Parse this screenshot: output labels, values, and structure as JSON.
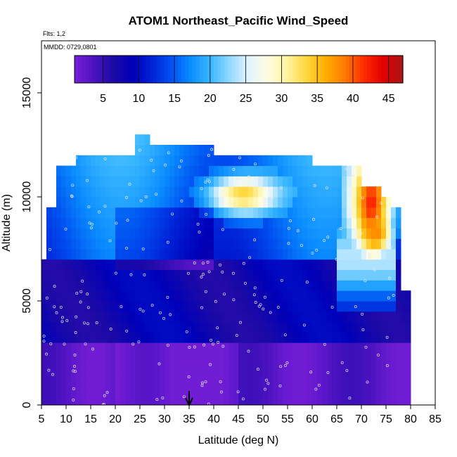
{
  "chart_data": {
    "type": "heatmap",
    "title": "ATOM1 Northeast_Pacific Wind_Speed",
    "info": [
      "Flts: 1,2",
      "MMDD: 0729,0801"
    ],
    "xlabel": "Latitude (deg N)",
    "ylabel": "Altitude (m)",
    "xlim": [
      5,
      85
    ],
    "ylim": [
      0,
      17500
    ],
    "xticks": [
      "5",
      "10",
      "15",
      "20",
      "25",
      "30",
      "35",
      "40",
      "45",
      "50",
      "55",
      "60",
      "65",
      "70",
      "75",
      "80",
      "85"
    ],
    "yticks": [
      "0",
      "5000",
      "10000",
      "15000"
    ],
    "colorbar": {
      "range": [
        1,
        47
      ],
      "ticks": [
        "5",
        "10",
        "15",
        "20",
        "25",
        "30",
        "35",
        "40",
        "45"
      ],
      "colors": [
        "#7a1fd9",
        "#4b12c0",
        "#1d0aa6",
        "#0000b8",
        "#0022d8",
        "#0050f0",
        "#0a8cff",
        "#38b6ff",
        "#8fd8ff",
        "#e2f4ff",
        "#fffde0",
        "#fff3a0",
        "#ffd840",
        "#ffae00",
        "#ff7a00",
        "#ff2a00",
        "#e00000",
        "#a81818"
      ]
    },
    "marker": {
      "x": 35,
      "label": "arrow"
    },
    "profile_top_alt": [
      [
        5.5,
        6800
      ],
      [
        6.5,
        9500
      ],
      [
        8,
        11400
      ],
      [
        11.5,
        11400
      ],
      [
        12,
        12000
      ],
      [
        17,
        12000
      ],
      [
        20,
        12000
      ],
      [
        23,
        12000
      ],
      [
        24,
        12800
      ],
      [
        26,
        12800
      ],
      [
        27,
        12400
      ],
      [
        35,
        12400
      ],
      [
        40,
        12000
      ],
      [
        50,
        12000
      ],
      [
        60,
        11400
      ],
      [
        67,
        11400
      ],
      [
        70,
        10500
      ],
      [
        74,
        10000
      ],
      [
        76,
        9500
      ],
      [
        78,
        5500
      ],
      [
        79,
        5500
      ]
    ],
    "jets": [
      {
        "lat_range": [
          38,
          55
        ],
        "alt_range": [
          8700,
          11000
        ],
        "peak_lat": 46,
        "peak_alt": 10100,
        "peak": 34
      },
      {
        "lat_range": [
          66,
          76
        ],
        "alt_range": [
          4300,
          10500
        ],
        "peak_lat": 72,
        "peak_alt": 9700,
        "peak": 42
      },
      {
        "lat_range": [
          70,
          76
        ],
        "alt_range": [
          7000,
          8800
        ],
        "peak_lat": 73,
        "peak_alt": 8200,
        "peak": 38
      }
    ],
    "background": {
      "low_level": 3,
      "mid_level": 8,
      "upper_level": 14
    }
  }
}
